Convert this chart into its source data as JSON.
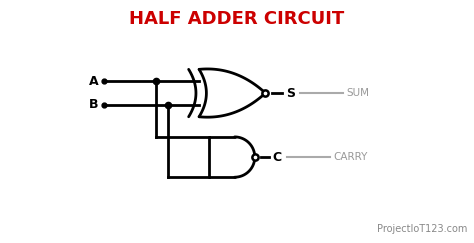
{
  "title": "HALF ADDER CIRCUIT",
  "title_color": "#cc0000",
  "title_fontsize": 13,
  "bg_color": "#ffffff",
  "gate_color": "#000000",
  "line_color": "#000000",
  "label_A": "A",
  "label_B": "B",
  "label_S": "S",
  "label_C": "C",
  "label_SUM": "SUM",
  "label_CARRY": "CARRY",
  "watermark": "ProjectIoT123.com",
  "watermark_color": "#888888",
  "watermark_fontsize": 7,
  "label_color": "#000000",
  "output_label_color": "#999999"
}
